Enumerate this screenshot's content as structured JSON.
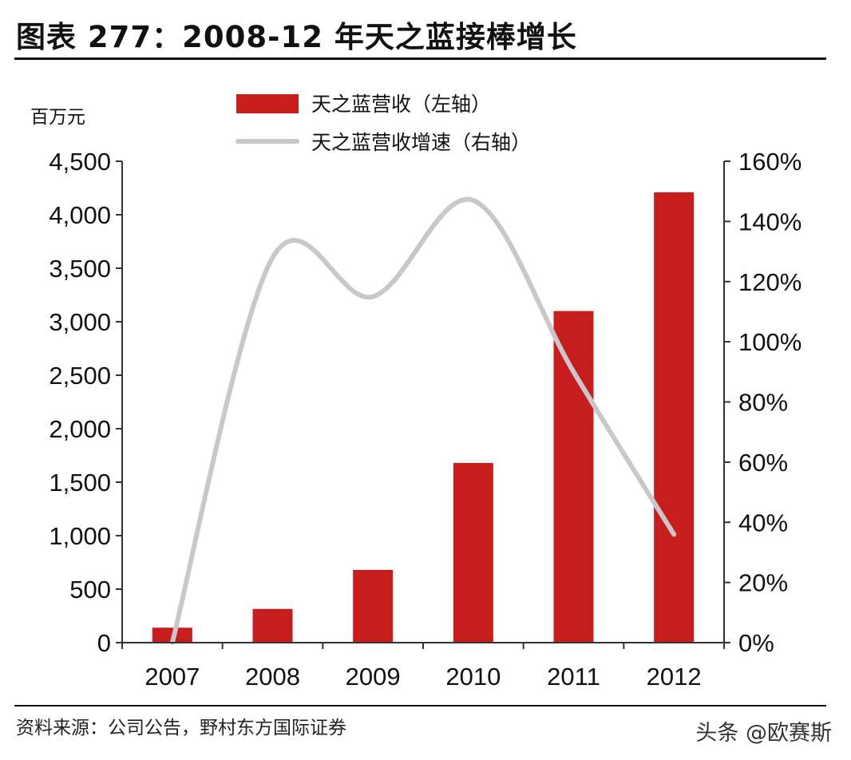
{
  "title": "图表 277：2008-12 年天之蓝接棒增长",
  "source": "资料来源：公司公告，野村东方国际证券",
  "watermark": "头条 @欧赛斯",
  "chart_data": {
    "type": "bar",
    "categories": [
      "2007",
      "2008",
      "2009",
      "2010",
      "2011",
      "2012"
    ],
    "series": [
      {
        "name": "天之蓝营收（左轴）",
        "kind": "bar",
        "axis": "left",
        "values": [
          140,
          315,
          680,
          1680,
          3100,
          4210
        ],
        "color": "#c81d1d"
      },
      {
        "name": "天之蓝营收增速（右轴）",
        "kind": "line",
        "axis": "right",
        "values": [
          0,
          128,
          115,
          147,
          90,
          36
        ],
        "color": "#c8c8cc"
      }
    ],
    "left_axis": {
      "label": "百万元",
      "min": 0,
      "max": 4500,
      "ticks": [
        0,
        500,
        1000,
        1500,
        2000,
        2500,
        3000,
        3500,
        4000,
        4500
      ],
      "tick_labels": [
        "0",
        "500",
        "1,000",
        "1,500",
        "2,000",
        "2,500",
        "3,000",
        "3,500",
        "4,000",
        "4,500"
      ]
    },
    "right_axis": {
      "label": "",
      "min": 0,
      "max": 160,
      "ticks": [
        0,
        20,
        40,
        60,
        80,
        100,
        120,
        140,
        160
      ],
      "tick_labels": [
        "0%",
        "20%",
        "40%",
        "60%",
        "80%",
        "100%",
        "120%",
        "140%",
        "160%"
      ]
    },
    "legend_position": "top-center",
    "grid": false
  }
}
